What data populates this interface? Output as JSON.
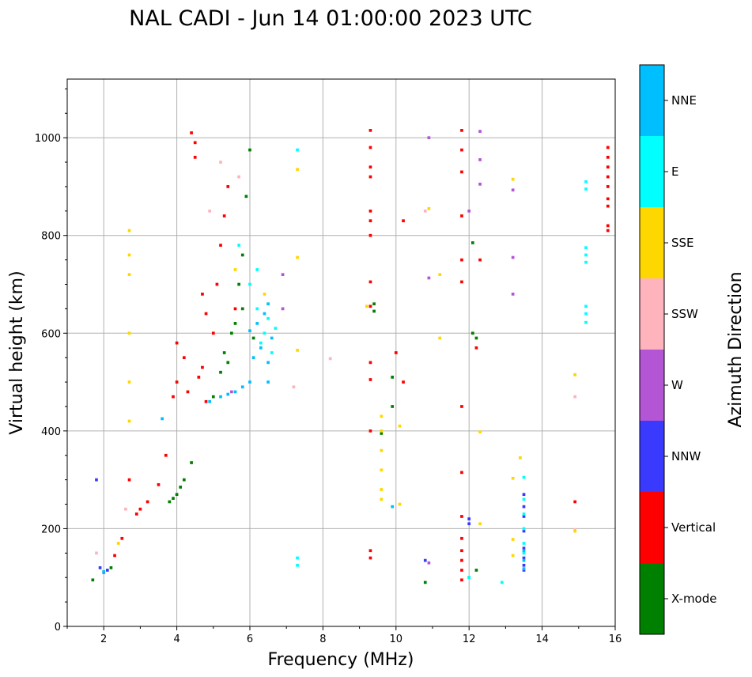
{
  "chart_data": {
    "type": "scatter",
    "title": "NAL CADI - Jun 14 01:00:00 2023 UTC",
    "xlabel": "Frequency (MHz)",
    "ylabel": "Virtual height (km)",
    "xlim": [
      1,
      16
    ],
    "ylim": [
      0,
      1120
    ],
    "xticks": [
      2,
      4,
      6,
      8,
      10,
      12,
      14,
      16
    ],
    "yticks": [
      0,
      200,
      400,
      600,
      800,
      1000
    ],
    "grid": true,
    "cell": {
      "df": 0.08,
      "dh": 6
    },
    "colorbar": {
      "label": "Azimuth Direction",
      "categories": [
        {
          "name": "X-mode",
          "color": "#008000"
        },
        {
          "name": "Vertical",
          "color": "#ff0000"
        },
        {
          "name": "NNW",
          "color": "#3a3aff"
        },
        {
          "name": "W",
          "color": "#b455d6"
        },
        {
          "name": "SSW",
          "color": "#ffb3bd"
        },
        {
          "name": "SSE",
          "color": "#ffd700"
        },
        {
          "name": "E",
          "color": "#00ffff"
        },
        {
          "name": "NNE",
          "color": "#00bfff"
        }
      ]
    },
    "series": [
      {
        "name": "X-mode",
        "points": [
          [
            1.7,
            95
          ],
          [
            2.2,
            120
          ],
          [
            3.8,
            255
          ],
          [
            3.9,
            262
          ],
          [
            4.0,
            270
          ],
          [
            4.1,
            285
          ],
          [
            4.2,
            300
          ],
          [
            4.4,
            335
          ],
          [
            5.0,
            470
          ],
          [
            5.2,
            520
          ],
          [
            5.4,
            540
          ],
          [
            5.5,
            600
          ],
          [
            5.6,
            620
          ],
          [
            5.7,
            700
          ],
          [
            5.8,
            760
          ],
          [
            5.9,
            880
          ],
          [
            6.0,
            975
          ],
          [
            5.3,
            560
          ],
          [
            5.8,
            650
          ],
          [
            6.1,
            590
          ],
          [
            9.4,
            660
          ],
          [
            9.4,
            645
          ],
          [
            9.9,
            510
          ],
          [
            9.9,
            450
          ],
          [
            9.6,
            395
          ],
          [
            12.1,
            785
          ],
          [
            12.1,
            600
          ],
          [
            12.2,
            590
          ],
          [
            12.2,
            115
          ],
          [
            10.8,
            90
          ],
          [
            12.0,
            100
          ]
        ]
      },
      {
        "name": "Vertical",
        "points": [
          [
            2.3,
            145
          ],
          [
            2.5,
            180
          ],
          [
            2.9,
            230
          ],
          [
            3.0,
            240
          ],
          [
            3.2,
            255
          ],
          [
            3.5,
            290
          ],
          [
            3.7,
            350
          ],
          [
            3.9,
            470
          ],
          [
            4.0,
            500
          ],
          [
            4.0,
            580
          ],
          [
            4.2,
            550
          ],
          [
            4.3,
            480
          ],
          [
            4.4,
            1010
          ],
          [
            4.5,
            990
          ],
          [
            4.6,
            510
          ],
          [
            4.7,
            530
          ],
          [
            4.8,
            460
          ],
          [
            4.8,
            640
          ],
          [
            5.0,
            600
          ],
          [
            5.1,
            700
          ],
          [
            5.2,
            780
          ],
          [
            5.3,
            840
          ],
          [
            5.4,
            900
          ],
          [
            4.5,
            960
          ],
          [
            4.7,
            680
          ],
          [
            5.6,
            650
          ],
          [
            2.7,
            300
          ],
          [
            9.3,
            1015
          ],
          [
            9.3,
            980
          ],
          [
            9.3,
            940
          ],
          [
            9.3,
            920
          ],
          [
            9.3,
            850
          ],
          [
            9.3,
            830
          ],
          [
            9.3,
            800
          ],
          [
            9.3,
            705
          ],
          [
            9.3,
            655
          ],
          [
            9.3,
            540
          ],
          [
            9.3,
            505
          ],
          [
            9.3,
            400
          ],
          [
            9.3,
            155
          ],
          [
            9.3,
            140
          ],
          [
            10.0,
            560
          ],
          [
            10.2,
            500
          ],
          [
            10.2,
            830
          ],
          [
            11.8,
            1015
          ],
          [
            11.8,
            975
          ],
          [
            11.8,
            930
          ],
          [
            11.8,
            840
          ],
          [
            11.8,
            750
          ],
          [
            11.8,
            705
          ],
          [
            11.8,
            450
          ],
          [
            11.8,
            315
          ],
          [
            11.8,
            225
          ],
          [
            11.8,
            180
          ],
          [
            11.8,
            155
          ],
          [
            11.8,
            135
          ],
          [
            11.8,
            115
          ],
          [
            11.8,
            95
          ],
          [
            12.2,
            570
          ],
          [
            12.3,
            750
          ],
          [
            14.9,
            255
          ],
          [
            15.8,
            980
          ],
          [
            15.8,
            960
          ],
          [
            15.8,
            940
          ],
          [
            15.8,
            920
          ],
          [
            15.8,
            900
          ],
          [
            15.8,
            875
          ],
          [
            15.8,
            860
          ],
          [
            15.8,
            820
          ],
          [
            15.8,
            810
          ]
        ]
      },
      {
        "name": "NNW",
        "points": [
          [
            1.8,
            300
          ],
          [
            1.9,
            120
          ],
          [
            2.1,
            115
          ],
          [
            12.0,
            210
          ],
          [
            12.0,
            220
          ],
          [
            13.5,
            270
          ],
          [
            13.5,
            245
          ],
          [
            13.5,
            225
          ],
          [
            13.5,
            195
          ],
          [
            13.5,
            160
          ],
          [
            13.5,
            140
          ],
          [
            13.5,
            125
          ],
          [
            13.5,
            115
          ],
          [
            10.8,
            135
          ]
        ]
      },
      {
        "name": "W",
        "points": [
          [
            2.0,
            110
          ],
          [
            5.5,
            480
          ],
          [
            6.9,
            650
          ],
          [
            6.9,
            720
          ],
          [
            10.9,
            1000
          ],
          [
            10.9,
            713
          ],
          [
            12.3,
            1013
          ],
          [
            12.3,
            955
          ],
          [
            12.3,
            905
          ],
          [
            13.2,
            755
          ],
          [
            13.2,
            680
          ],
          [
            12.0,
            850
          ],
          [
            13.2,
            893
          ],
          [
            10.9,
            130
          ]
        ]
      },
      {
        "name": "SSW",
        "points": [
          [
            1.8,
            150
          ],
          [
            2.6,
            240
          ],
          [
            4.9,
            850
          ],
          [
            5.2,
            950
          ],
          [
            7.2,
            490
          ],
          [
            8.2,
            548
          ],
          [
            10.8,
            850
          ],
          [
            14.9,
            470
          ],
          [
            14.9,
            515
          ],
          [
            5.7,
            920
          ],
          [
            14.9,
            198
          ]
        ]
      },
      {
        "name": "SSE",
        "points": [
          [
            2.7,
            810
          ],
          [
            2.7,
            760
          ],
          [
            2.7,
            720
          ],
          [
            2.7,
            600
          ],
          [
            2.7,
            500
          ],
          [
            2.7,
            420
          ],
          [
            2.4,
            170
          ],
          [
            7.3,
            755
          ],
          [
            7.3,
            565
          ],
          [
            7.3,
            935
          ],
          [
            9.6,
            430
          ],
          [
            9.6,
            400
          ],
          [
            9.6,
            360
          ],
          [
            9.6,
            320
          ],
          [
            9.6,
            280
          ],
          [
            9.6,
            260
          ],
          [
            10.1,
            410
          ],
          [
            10.1,
            250
          ],
          [
            11.2,
            720
          ],
          [
            11.2,
            590
          ],
          [
            12.3,
            398
          ],
          [
            12.3,
            210
          ],
          [
            13.2,
            915
          ],
          [
            13.2,
            303
          ],
          [
            13.2,
            178
          ],
          [
            13.2,
            145
          ],
          [
            13.4,
            345
          ],
          [
            14.9,
            195
          ],
          [
            14.9,
            515
          ],
          [
            6.4,
            680
          ],
          [
            5.6,
            730
          ],
          [
            10.9,
            855
          ],
          [
            9.2,
            655
          ]
        ]
      },
      {
        "name": "E",
        "points": [
          [
            5.7,
            780
          ],
          [
            6.0,
            700
          ],
          [
            6.2,
            650
          ],
          [
            6.4,
            600
          ],
          [
            6.3,
            580
          ],
          [
            6.5,
            630
          ],
          [
            6.7,
            610
          ],
          [
            6.2,
            730
          ],
          [
            7.3,
            975
          ],
          [
            7.3,
            140
          ],
          [
            7.3,
            125
          ],
          [
            12.0,
            100
          ],
          [
            12.9,
            90
          ],
          [
            13.5,
            305
          ],
          [
            13.5,
            260
          ],
          [
            13.5,
            230
          ],
          [
            13.5,
            200
          ],
          [
            13.5,
            170
          ],
          [
            13.5,
            150
          ],
          [
            15.2,
            910
          ],
          [
            15.2,
            895
          ],
          [
            15.2,
            775
          ],
          [
            15.2,
            760
          ],
          [
            15.2,
            745
          ],
          [
            15.2,
            655
          ],
          [
            15.2,
            640
          ],
          [
            15.2,
            622
          ],
          [
            6.6,
            560
          ]
        ]
      },
      {
        "name": "NNE",
        "points": [
          [
            2.0,
            112
          ],
          [
            3.6,
            425
          ],
          [
            4.9,
            460
          ],
          [
            5.2,
            470
          ],
          [
            5.4,
            475
          ],
          [
            5.6,
            480
          ],
          [
            5.8,
            490
          ],
          [
            6.0,
            500
          ],
          [
            6.1,
            550
          ],
          [
            6.3,
            570
          ],
          [
            6.5,
            540
          ],
          [
            6.2,
            620
          ],
          [
            6.4,
            640
          ],
          [
            6.6,
            590
          ],
          [
            6.5,
            500
          ],
          [
            6.0,
            605
          ],
          [
            9.9,
            245
          ],
          [
            13.5,
            155
          ],
          [
            13.5,
            135
          ],
          [
            13.5,
            118
          ],
          [
            6.5,
            660
          ]
        ]
      }
    ]
  }
}
